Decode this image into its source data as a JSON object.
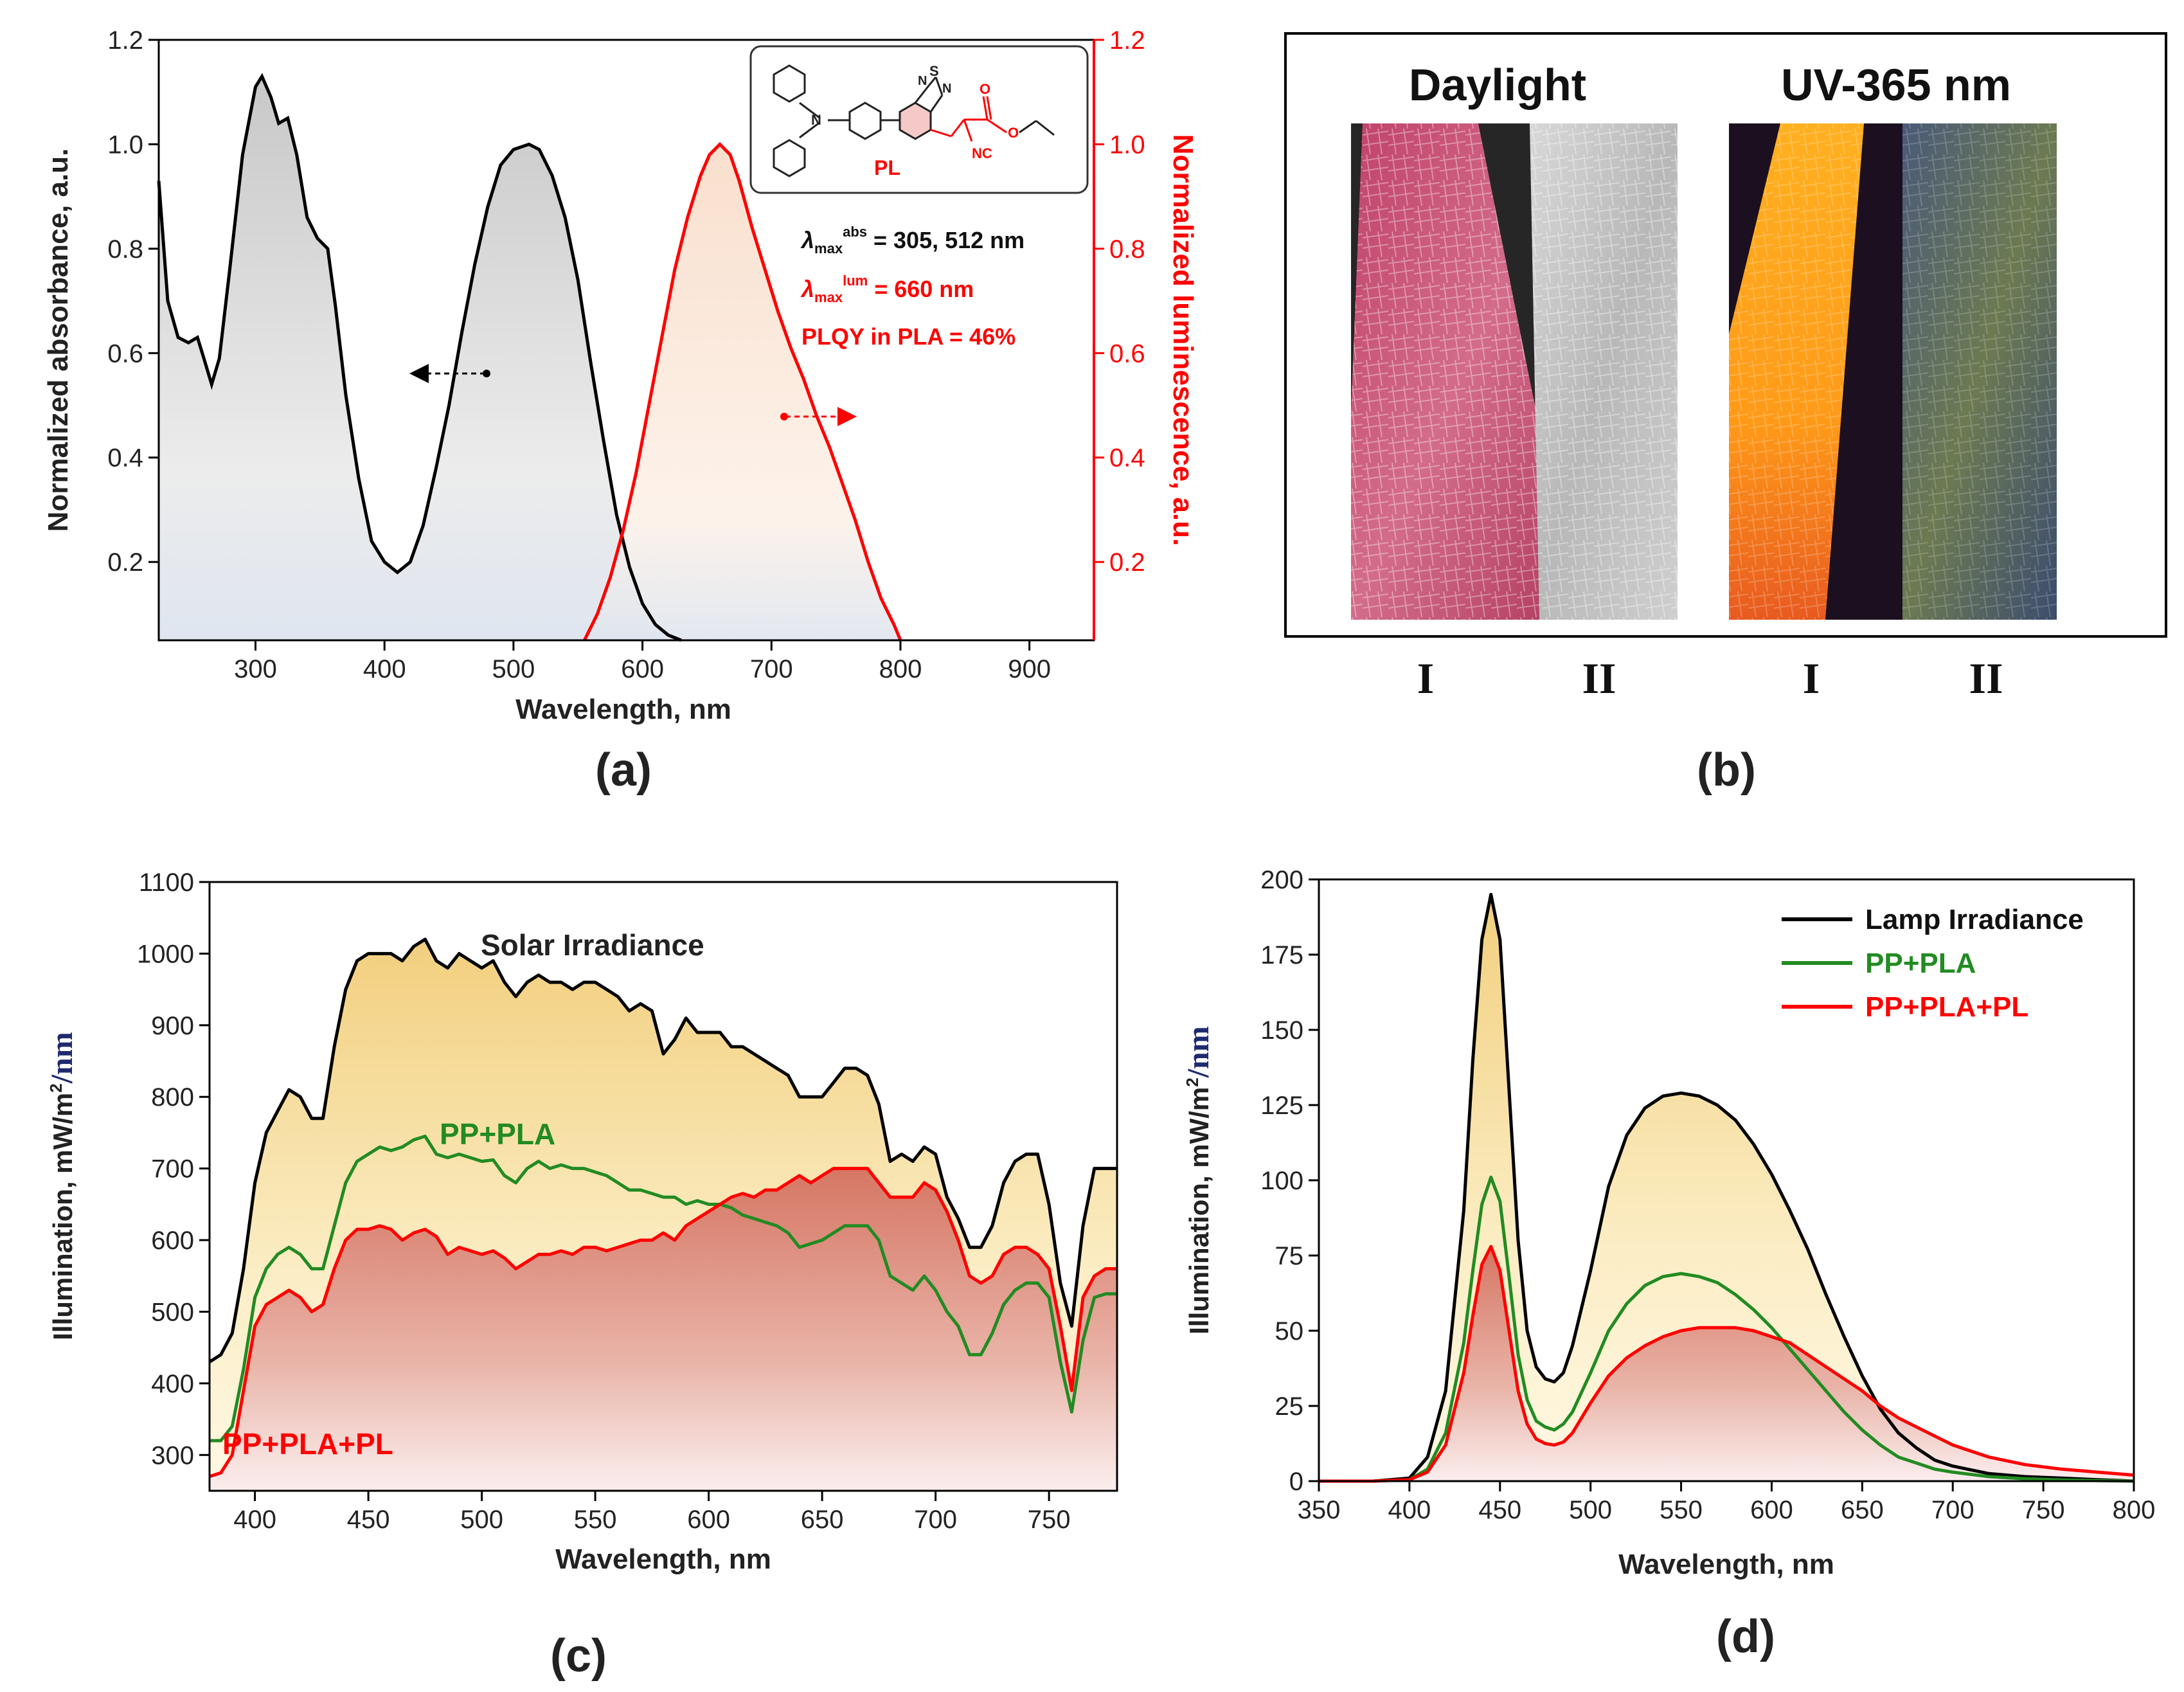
{
  "chart_data": [
    {
      "id": "a",
      "type": "line",
      "panel_label": "(a)",
      "xlabel": "Wavelength, nm",
      "ylabel": "Normalized absorbance, a.u.",
      "y2label": "Normalized luminescence, a.u.",
      "xlim": [
        225,
        950
      ],
      "ylim": [
        0.05,
        1.2
      ],
      "y2lim": [
        0.05,
        1.2
      ],
      "xticks": [
        300,
        400,
        500,
        600,
        700,
        800,
        900
      ],
      "yticks": [
        0.2,
        0.4,
        0.6,
        0.8,
        1.0,
        1.2
      ],
      "y2ticks": [
        0.2,
        0.4,
        0.6,
        0.8,
        1.0,
        1.2
      ],
      "series": [
        {
          "name": "Absorbance",
          "color": "#000000",
          "axis": "left",
          "x": [
            225,
            232,
            240,
            248,
            255,
            260,
            266,
            272,
            280,
            290,
            300,
            305,
            312,
            318,
            325,
            332,
            340,
            348,
            356,
            362,
            370,
            380,
            390,
            400,
            410,
            420,
            430,
            440,
            450,
            460,
            470,
            480,
            490,
            500,
            512,
            520,
            530,
            540,
            550,
            560,
            570,
            580,
            590,
            600,
            610,
            620,
            630
          ],
          "y": [
            0.93,
            0.7,
            0.63,
            0.62,
            0.63,
            0.59,
            0.54,
            0.59,
            0.76,
            0.98,
            1.11,
            1.13,
            1.09,
            1.04,
            1.05,
            0.98,
            0.86,
            0.82,
            0.8,
            0.69,
            0.52,
            0.36,
            0.24,
            0.2,
            0.18,
            0.2,
            0.27,
            0.38,
            0.5,
            0.64,
            0.77,
            0.88,
            0.96,
            0.99,
            1.0,
            0.99,
            0.94,
            0.86,
            0.74,
            0.58,
            0.43,
            0.29,
            0.19,
            0.12,
            0.08,
            0.06,
            0.05
          ]
        },
        {
          "name": "Luminescence",
          "color": "#ff0000",
          "axis": "right",
          "x": [
            555,
            565,
            575,
            585,
            595,
            605,
            615,
            625,
            635,
            645,
            652,
            660,
            668,
            675,
            685,
            695,
            705,
            715,
            725,
            735,
            745,
            755,
            765,
            775,
            785,
            795,
            800
          ],
          "y": [
            0.05,
            0.1,
            0.17,
            0.26,
            0.37,
            0.5,
            0.63,
            0.76,
            0.86,
            0.94,
            0.98,
            1.0,
            0.98,
            0.93,
            0.84,
            0.76,
            0.68,
            0.61,
            0.55,
            0.48,
            0.42,
            0.35,
            0.28,
            0.2,
            0.13,
            0.08,
            0.05
          ]
        }
      ],
      "annotations": {
        "abs_label_lambda": "λ",
        "abs_label_sub": "max",
        "abs_label_sup": "abs",
        "abs_label_value": " = 305, 512 nm",
        "lum_label_lambda": "λ",
        "lum_label_sub": "max",
        "lum_label_sup": "lum",
        "lum_label_value": " = 660 nm",
        "plqy": "PLQY in PLA = 46%",
        "molecule_name": "PL",
        "atom_n": "N",
        "atom_s": "S",
        "atom_nc": "NC",
        "atom_o": "O"
      }
    },
    {
      "id": "c",
      "type": "area",
      "panel_label": "(c)",
      "xlabel": "Wavelength, nm",
      "ylabel_main": "Illumination, mW/m",
      "ylabel_sup": "2",
      "ylabel_tail": "/nm",
      "xlim": [
        380,
        780
      ],
      "ylim": [
        250,
        1100
      ],
      "xticks": [
        400,
        450,
        500,
        550,
        600,
        650,
        700,
        750
      ],
      "yticks": [
        300,
        400,
        500,
        600,
        700,
        800,
        900,
        1000,
        1100
      ],
      "series": [
        {
          "name": "Solar Irradiance",
          "color": "#000000",
          "x": [
            380,
            385,
            390,
            395,
            400,
            405,
            410,
            415,
            420,
            425,
            430,
            435,
            440,
            445,
            450,
            455,
            460,
            465,
            470,
            475,
            480,
            485,
            490,
            495,
            500,
            505,
            510,
            515,
            520,
            525,
            530,
            535,
            540,
            545,
            550,
            555,
            560,
            565,
            570,
            575,
            580,
            585,
            590,
            595,
            600,
            605,
            610,
            615,
            620,
            625,
            630,
            635,
            640,
            645,
            650,
            655,
            660,
            665,
            670,
            675,
            680,
            685,
            690,
            695,
            700,
            705,
            710,
            715,
            720,
            725,
            730,
            735,
            740,
            745,
            750,
            755,
            760,
            765,
            770,
            775,
            780
          ],
          "y": [
            430,
            440,
            470,
            560,
            680,
            750,
            780,
            810,
            800,
            770,
            770,
            870,
            950,
            990,
            1000,
            1000,
            1000,
            990,
            1010,
            1020,
            990,
            980,
            1000,
            990,
            980,
            990,
            960,
            940,
            960,
            970,
            960,
            960,
            950,
            960,
            960,
            950,
            940,
            920,
            930,
            920,
            860,
            880,
            910,
            890,
            890,
            890,
            870,
            870,
            860,
            850,
            840,
            830,
            800,
            800,
            800,
            820,
            840,
            840,
            830,
            790,
            710,
            720,
            710,
            730,
            720,
            660,
            630,
            590,
            590,
            620,
            680,
            710,
            720,
            720,
            650,
            540,
            480,
            620,
            700,
            700,
            700
          ]
        },
        {
          "name": "PP+PLA",
          "color": "#228b22",
          "x": [
            380,
            385,
            390,
            395,
            400,
            405,
            410,
            415,
            420,
            425,
            430,
            435,
            440,
            445,
            450,
            455,
            460,
            465,
            470,
            475,
            480,
            485,
            490,
            495,
            500,
            505,
            510,
            515,
            520,
            525,
            530,
            535,
            540,
            545,
            550,
            555,
            560,
            565,
            570,
            575,
            580,
            585,
            590,
            595,
            600,
            605,
            610,
            615,
            620,
            625,
            630,
            635,
            640,
            645,
            650,
            655,
            660,
            665,
            670,
            675,
            680,
            685,
            690,
            695,
            700,
            705,
            710,
            715,
            720,
            725,
            730,
            735,
            740,
            745,
            750,
            755,
            760,
            765,
            770,
            775,
            780
          ],
          "y": [
            320,
            320,
            340,
            420,
            520,
            560,
            580,
            590,
            580,
            560,
            560,
            620,
            680,
            710,
            720,
            730,
            725,
            730,
            740,
            745,
            720,
            715,
            720,
            715,
            710,
            712,
            690,
            680,
            700,
            710,
            700,
            705,
            700,
            700,
            695,
            690,
            680,
            670,
            670,
            665,
            660,
            660,
            650,
            655,
            650,
            650,
            645,
            635,
            630,
            625,
            620,
            610,
            590,
            595,
            600,
            610,
            620,
            620,
            620,
            600,
            550,
            540,
            530,
            550,
            530,
            500,
            480,
            440,
            440,
            470,
            510,
            530,
            540,
            540,
            520,
            430,
            360,
            460,
            520,
            525,
            525
          ]
        },
        {
          "name": "PP+PLA+PL",
          "color": "#ff0000",
          "x": [
            380,
            385,
            390,
            395,
            400,
            405,
            410,
            415,
            420,
            425,
            430,
            435,
            440,
            445,
            450,
            455,
            460,
            465,
            470,
            475,
            480,
            485,
            490,
            495,
            500,
            505,
            510,
            515,
            520,
            525,
            530,
            535,
            540,
            545,
            550,
            555,
            560,
            565,
            570,
            575,
            580,
            585,
            590,
            595,
            600,
            605,
            610,
            615,
            620,
            625,
            630,
            635,
            640,
            645,
            650,
            655,
            660,
            665,
            670,
            675,
            680,
            685,
            690,
            695,
            700,
            705,
            710,
            715,
            720,
            725,
            730,
            735,
            740,
            745,
            750,
            755,
            760,
            765,
            770,
            775,
            780
          ],
          "y": [
            270,
            275,
            300,
            390,
            480,
            510,
            520,
            530,
            520,
            500,
            510,
            560,
            600,
            615,
            615,
            620,
            615,
            600,
            610,
            615,
            605,
            580,
            590,
            585,
            580,
            585,
            575,
            560,
            570,
            580,
            580,
            585,
            580,
            590,
            590,
            585,
            590,
            595,
            600,
            600,
            610,
            600,
            620,
            630,
            640,
            650,
            660,
            665,
            660,
            670,
            670,
            680,
            690,
            680,
            690,
            700,
            700,
            700,
            700,
            680,
            660,
            660,
            660,
            680,
            670,
            640,
            600,
            550,
            540,
            550,
            580,
            590,
            590,
            580,
            560,
            480,
            390,
            520,
            550,
            560,
            560
          ]
        }
      ],
      "labels": {
        "solar": "Solar Irradiance",
        "pp_pla": "PP+PLA",
        "pp_pla_pl": "PP+PLA+PL"
      }
    },
    {
      "id": "d",
      "type": "area",
      "panel_label": "(d)",
      "xlabel": "Wavelength, nm",
      "ylabel_main": "Illumination, mW/m",
      "ylabel_sup": "2",
      "ylabel_tail": "/nm",
      "xlim": [
        350,
        800
      ],
      "ylim": [
        0,
        200
      ],
      "xticks": [
        350,
        400,
        450,
        500,
        550,
        600,
        650,
        700,
        750,
        800
      ],
      "yticks": [
        0,
        25,
        50,
        75,
        100,
        125,
        150,
        175,
        200
      ],
      "legend": [
        "Lamp Irradiance",
        "PP+PLA",
        "PP+PLA+PL"
      ],
      "legend_position": "top-right",
      "series": [
        {
          "name": "Lamp Irradiance",
          "color": "#000000",
          "x": [
            350,
            380,
            400,
            410,
            420,
            430,
            435,
            440,
            445,
            450,
            455,
            460,
            465,
            470,
            475,
            480,
            485,
            490,
            500,
            510,
            520,
            530,
            540,
            550,
            560,
            570,
            580,
            590,
            600,
            610,
            620,
            630,
            640,
            650,
            660,
            670,
            680,
            690,
            700,
            720,
            740,
            760,
            780,
            800
          ],
          "y": [
            0,
            0,
            1,
            8,
            30,
            90,
            140,
            180,
            195,
            180,
            130,
            80,
            50,
            38,
            34,
            33,
            36,
            45,
            70,
            98,
            115,
            124,
            128,
            129,
            128,
            125,
            120,
            112,
            102,
            90,
            77,
            62,
            48,
            35,
            24,
            16,
            11,
            7,
            5,
            2.5,
            1.5,
            1,
            0.5,
            0
          ]
        },
        {
          "name": "PP+PLA",
          "color": "#228b22",
          "x": [
            350,
            380,
            400,
            410,
            420,
            430,
            435,
            440,
            445,
            450,
            455,
            460,
            465,
            470,
            475,
            480,
            485,
            490,
            500,
            510,
            520,
            530,
            540,
            550,
            560,
            570,
            580,
            590,
            600,
            610,
            620,
            630,
            640,
            650,
            660,
            670,
            680,
            690,
            700,
            720,
            740,
            760,
            780,
            800
          ],
          "y": [
            0,
            0,
            0.5,
            4,
            16,
            46,
            70,
            92,
            101,
            93,
            68,
            42,
            27,
            20,
            18,
            17,
            19,
            23,
            36,
            50,
            59,
            65,
            68,
            69,
            68,
            66,
            62,
            57,
            51,
            44,
            37,
            30,
            23,
            17,
            12,
            8,
            6,
            4,
            3,
            1.5,
            0.8,
            0.4,
            0.2,
            0
          ]
        },
        {
          "name": "PP+PLA+PL",
          "color": "#ff0000",
          "x": [
            350,
            380,
            400,
            410,
            420,
            430,
            435,
            440,
            445,
            450,
            455,
            460,
            465,
            470,
            475,
            480,
            485,
            490,
            500,
            510,
            520,
            530,
            540,
            550,
            560,
            570,
            580,
            590,
            600,
            610,
            620,
            630,
            640,
            650,
            660,
            670,
            680,
            690,
            700,
            720,
            740,
            760,
            780,
            800
          ],
          "y": [
            0,
            0,
            0.5,
            3,
            12,
            36,
            55,
            72,
            78,
            70,
            50,
            30,
            19,
            14,
            12.5,
            12,
            13,
            16,
            26,
            35,
            41,
            45,
            48,
            50,
            51,
            51,
            51,
            50,
            48,
            46,
            42,
            38,
            34,
            30,
            25,
            21,
            18,
            15,
            12,
            8,
            5.5,
            4,
            3,
            2
          ]
        }
      ]
    }
  ],
  "panel_b": {
    "panel_label": "(b)",
    "left_title": "Daylight",
    "right_title": "UV-365 nm",
    "sample_labels": [
      "I",
      "II",
      "I",
      "II"
    ]
  }
}
